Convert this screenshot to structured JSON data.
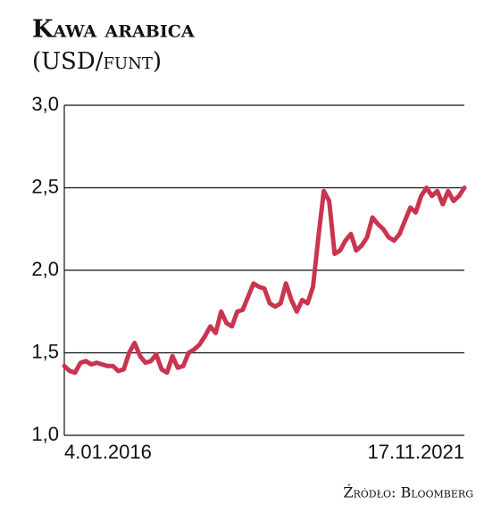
{
  "chart_data": {
    "type": "line",
    "title": "Kawa arabica",
    "subtitle": "(USD/funt)",
    "source": "Źródło: Bloomberg",
    "categories": [
      "4.01.2016",
      null,
      null,
      null,
      null,
      null,
      null,
      null,
      null,
      null,
      null,
      null,
      null,
      null,
      null,
      null,
      null,
      null,
      null,
      null,
      null,
      null,
      null,
      null,
      null,
      null,
      null,
      null,
      null,
      null,
      null,
      null,
      null,
      null,
      null,
      null,
      null,
      null,
      null,
      null,
      null,
      null,
      null,
      null,
      null,
      null,
      null,
      null,
      null,
      null,
      null,
      null,
      null,
      null,
      null,
      null,
      null,
      null,
      null,
      null,
      null,
      null,
      null,
      null,
      null,
      null,
      null,
      null,
      null,
      null,
      null,
      null,
      null,
      null,
      "17.11.2021"
    ],
    "series": [
      {
        "name": "Kawa arabica",
        "color": "#c9354f",
        "values": [
          1.42,
          1.39,
          1.38,
          1.44,
          1.45,
          1.43,
          1.44,
          1.43,
          1.42,
          1.42,
          1.39,
          1.4,
          1.5,
          1.56,
          1.48,
          1.44,
          1.45,
          1.49,
          1.4,
          1.38,
          1.48,
          1.41,
          1.42,
          1.5,
          1.52,
          1.55,
          1.6,
          1.66,
          1.62,
          1.75,
          1.68,
          1.66,
          1.75,
          1.76,
          1.84,
          1.92,
          1.9,
          1.89,
          1.8,
          1.78,
          1.8,
          1.92,
          1.82,
          1.75,
          1.82,
          1.8,
          1.9,
          2.2,
          2.48,
          2.42,
          2.1,
          2.12,
          2.18,
          2.22,
          2.12,
          2.15,
          2.2,
          2.32,
          2.28,
          2.25,
          2.2,
          2.18,
          2.22,
          2.3,
          2.38,
          2.35,
          2.45,
          2.5,
          2.45,
          2.48,
          2.4,
          2.48,
          2.42,
          2.45,
          2.5
        ]
      }
    ],
    "ylim": [
      1.0,
      3.0
    ],
    "yticks": [
      {
        "value": 1.0,
        "label": "1,0"
      },
      {
        "value": 1.5,
        "label": "1,5"
      },
      {
        "value": 2.0,
        "label": "2,0"
      },
      {
        "value": 2.5,
        "label": "2,5"
      },
      {
        "value": 3.0,
        "label": "3,0"
      }
    ],
    "grid": true
  }
}
